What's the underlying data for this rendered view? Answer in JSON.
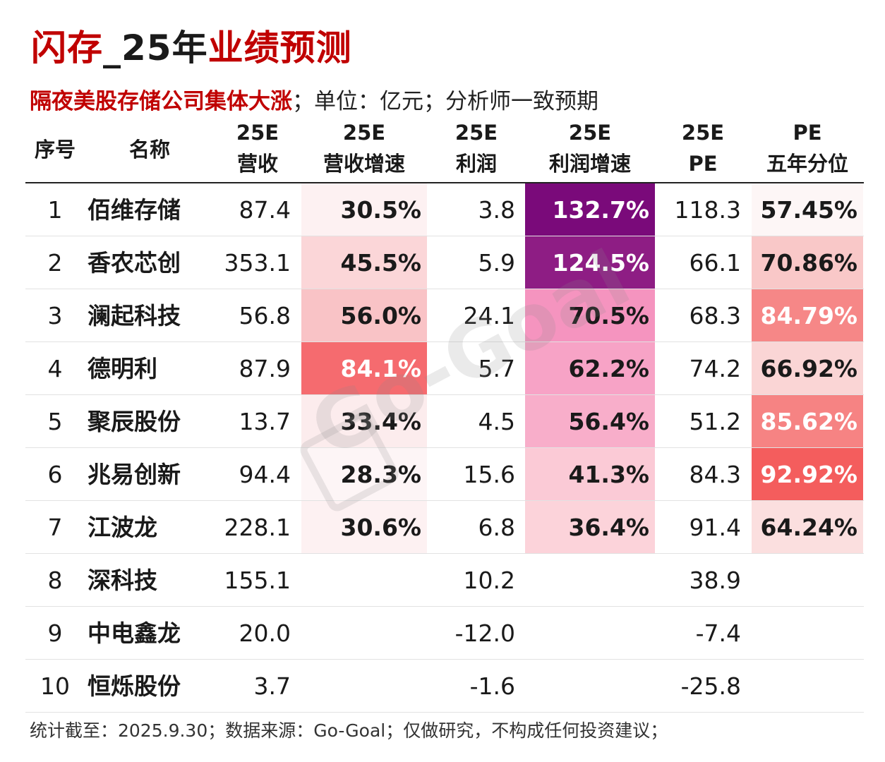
{
  "title": {
    "part1": "闪存",
    "part2": "_25年",
    "part3": "业绩预测"
  },
  "subtitle": {
    "highlight": "隔夜美股存储公司集体大涨",
    "rest": "；单位：亿元；分析师一致预期"
  },
  "watermark": "Go-Goal",
  "footer": "统计截至：2025.9.30；数据来源：Go-Goal；仅做研究，不构成任何投资建议；",
  "colors": {
    "title_red": "#c00000",
    "revenue_growth_scale": [
      "#fdf5f6",
      "#f9c3c6",
      "#f56b6f"
    ],
    "profit_growth_scale": [
      "#fcd3da",
      "#f27ab4",
      "#7a0a7a"
    ],
    "pe_percentile_scale": [
      "#fdf6f6",
      "#f8b9b9",
      "#f45d5d"
    ]
  },
  "chart_data": {
    "type": "table",
    "title": "闪存_25年业绩预测",
    "columns": [
      {
        "key": "idx",
        "line1": "序号",
        "line2": ""
      },
      {
        "key": "name",
        "line1": "名称",
        "line2": ""
      },
      {
        "key": "rev",
        "line1": "25E",
        "line2": "营收"
      },
      {
        "key": "rev_growth",
        "line1": "25E",
        "line2": "营收增速"
      },
      {
        "key": "profit",
        "line1": "25E",
        "line2": "利润"
      },
      {
        "key": "profit_growth",
        "line1": "25E",
        "line2": "利润增速"
      },
      {
        "key": "pe",
        "line1": "25E",
        "line2": "PE"
      },
      {
        "key": "pe_pct",
        "line1": "PE",
        "line2": "五年分位"
      }
    ],
    "rows": [
      {
        "idx": "1",
        "name": "佰维存储",
        "rev": "87.4",
        "rev_growth": "30.5%",
        "profit": "3.8",
        "profit_growth": "132.7%",
        "pe": "118.3",
        "pe_pct": "57.45%",
        "rev_growth_v": 30.5,
        "profit_growth_v": 132.7,
        "pe_pct_v": 57.45
      },
      {
        "idx": "2",
        "name": "香农芯创",
        "rev": "353.1",
        "rev_growth": "45.5%",
        "profit": "5.9",
        "profit_growth": "124.5%",
        "pe": "66.1",
        "pe_pct": "70.86%",
        "rev_growth_v": 45.5,
        "profit_growth_v": 124.5,
        "pe_pct_v": 70.86
      },
      {
        "idx": "3",
        "name": "澜起科技",
        "rev": "56.8",
        "rev_growth": "56.0%",
        "profit": "24.1",
        "profit_growth": "70.5%",
        "pe": "68.3",
        "pe_pct": "84.79%",
        "rev_growth_v": 56.0,
        "profit_growth_v": 70.5,
        "pe_pct_v": 84.79
      },
      {
        "idx": "4",
        "name": "德明利",
        "rev": "87.9",
        "rev_growth": "84.1%",
        "profit": "5.7",
        "profit_growth": "62.2%",
        "pe": "74.2",
        "pe_pct": "66.92%",
        "rev_growth_v": 84.1,
        "profit_growth_v": 62.2,
        "pe_pct_v": 66.92
      },
      {
        "idx": "5",
        "name": "聚辰股份",
        "rev": "13.7",
        "rev_growth": "33.4%",
        "profit": "4.5",
        "profit_growth": "56.4%",
        "pe": "51.2",
        "pe_pct": "85.62%",
        "rev_growth_v": 33.4,
        "profit_growth_v": 56.4,
        "pe_pct_v": 85.62
      },
      {
        "idx": "6",
        "name": "兆易创新",
        "rev": "94.4",
        "rev_growth": "28.3%",
        "profit": "15.6",
        "profit_growth": "41.3%",
        "pe": "84.3",
        "pe_pct": "92.92%",
        "rev_growth_v": 28.3,
        "profit_growth_v": 41.3,
        "pe_pct_v": 92.92
      },
      {
        "idx": "7",
        "name": "江波龙",
        "rev": "228.1",
        "rev_growth": "30.6%",
        "profit": "6.8",
        "profit_growth": "36.4%",
        "pe": "91.4",
        "pe_pct": "64.24%",
        "rev_growth_v": 30.6,
        "profit_growth_v": 36.4,
        "pe_pct_v": 64.24
      },
      {
        "idx": "8",
        "name": "深科技",
        "rev": "155.1",
        "rev_growth": "",
        "profit": "10.2",
        "profit_growth": "",
        "pe": "38.9",
        "pe_pct": ""
      },
      {
        "idx": "9",
        "name": "中电鑫龙",
        "rev": "20.0",
        "rev_growth": "",
        "profit": "-12.0",
        "profit_growth": "",
        "pe": "-7.4",
        "pe_pct": ""
      },
      {
        "idx": "10",
        "name": "恒烁股份",
        "rev": "3.7",
        "rev_growth": "",
        "profit": "-1.6",
        "profit_growth": "",
        "pe": "-25.8",
        "pe_pct": ""
      }
    ]
  }
}
